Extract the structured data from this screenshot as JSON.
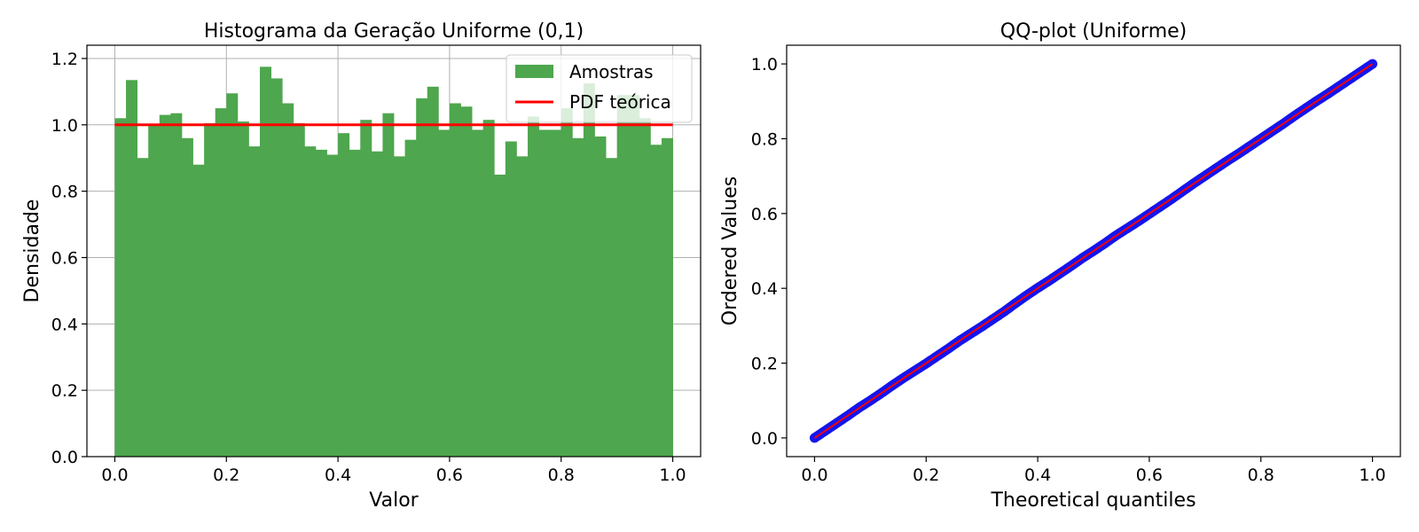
{
  "chart_data": [
    {
      "type": "bar",
      "title": "Histograma da Geração Uniforme (0,1)",
      "xlabel": "Valor",
      "ylabel": "Densidade",
      "xlim": [
        -0.05,
        1.05
      ],
      "ylim": [
        0,
        1.24
      ],
      "xticks": [
        "0.0",
        "0.2",
        "0.4",
        "0.6",
        "0.8",
        "1.0"
      ],
      "yticks": [
        "0.0",
        "0.2",
        "0.4",
        "0.6",
        "0.8",
        "1.0",
        "1.2"
      ],
      "grid": true,
      "legend_position": "top-right",
      "bin_width": 0.02,
      "series": [
        {
          "name": "Amostras",
          "color": "#4ea64e",
          "bin_start": 0.0,
          "values": [
            1.02,
            1.135,
            0.9,
            1.0,
            1.03,
            1.035,
            0.96,
            0.88,
            1.005,
            1.05,
            1.095,
            1.01,
            0.935,
            1.175,
            1.14,
            1.065,
            1.005,
            0.935,
            0.925,
            0.91,
            0.975,
            0.925,
            1.015,
            0.92,
            1.035,
            0.905,
            0.955,
            1.08,
            1.115,
            0.985,
            1.065,
            1.055,
            0.985,
            1.015,
            0.85,
            0.95,
            0.905,
            1.025,
            0.985,
            0.985,
            1.05,
            0.96,
            1.125,
            0.965,
            0.9,
            1.09,
            1.09,
            1.02,
            0.94,
            0.96
          ]
        },
        {
          "name": "PDF teórica",
          "color": "#ff0000",
          "x": [
            0.0,
            1.0
          ],
          "y": [
            1.0,
            1.0
          ]
        }
      ]
    },
    {
      "type": "scatter",
      "title": "QQ-plot (Uniforme)",
      "xlabel": "Theoretical quantiles",
      "ylabel": "Ordered Values",
      "xlim": [
        -0.05,
        1.05
      ],
      "ylim": [
        -0.05,
        1.05
      ],
      "xticks": [
        "0.0",
        "0.2",
        "0.4",
        "0.6",
        "0.8",
        "1.0"
      ],
      "yticks": [
        "0.0",
        "0.2",
        "0.4",
        "0.6",
        "0.8",
        "1.0"
      ],
      "grid": false,
      "series": [
        {
          "color": "#1515ee",
          "x": [
            0.0,
            0.02,
            0.04,
            0.06,
            0.08,
            0.1,
            0.12,
            0.14,
            0.16,
            0.18,
            0.2,
            0.22,
            0.24,
            0.26,
            0.28,
            0.3,
            0.32,
            0.34,
            0.36,
            0.38,
            0.4,
            0.42,
            0.44,
            0.46,
            0.48,
            0.5,
            0.52,
            0.54,
            0.56,
            0.58,
            0.6,
            0.62,
            0.64,
            0.66,
            0.68,
            0.7,
            0.72,
            0.74,
            0.76,
            0.78,
            0.8,
            0.82,
            0.84,
            0.86,
            0.88,
            0.9,
            0.92,
            0.94,
            0.96,
            0.98,
            1.0
          ],
          "y": [
            0.0,
            0.02,
            0.04,
            0.06,
            0.081,
            0.1,
            0.12,
            0.141,
            0.161,
            0.18,
            0.199,
            0.219,
            0.239,
            0.26,
            0.279,
            0.298,
            0.318,
            0.338,
            0.36,
            0.381,
            0.401,
            0.42,
            0.44,
            0.46,
            0.481,
            0.5,
            0.52,
            0.541,
            0.56,
            0.579,
            0.599,
            0.619,
            0.639,
            0.66,
            0.681,
            0.701,
            0.721,
            0.741,
            0.76,
            0.78,
            0.8,
            0.82,
            0.84,
            0.861,
            0.881,
            0.901,
            0.92,
            0.94,
            0.96,
            0.98,
            1.0
          ]
        },
        {
          "color": "#ff0000",
          "x": [
            0.0,
            1.0
          ],
          "y": [
            0.0,
            1.0
          ]
        }
      ]
    }
  ]
}
